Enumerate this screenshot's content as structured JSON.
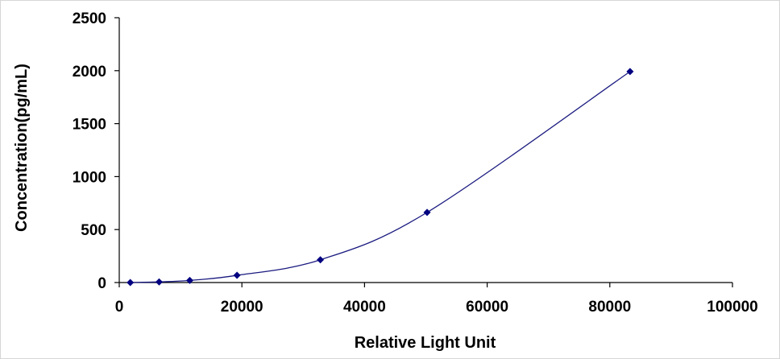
{
  "chart_data": {
    "type": "scatter",
    "title": "",
    "xlabel": "Relative Light Unit",
    "ylabel": "Concentration(pg/mL)",
    "xlim": [
      0,
      100000
    ],
    "ylim": [
      0,
      2500
    ],
    "x_ticks": [
      0,
      20000,
      40000,
      60000,
      80000,
      100000
    ],
    "y_ticks": [
      0,
      500,
      1000,
      1500,
      2000,
      2500
    ],
    "x_tick_labels": [
      "0",
      "20000",
      "40000",
      "60000",
      "80000",
      "100000"
    ],
    "y_tick_labels": [
      "0",
      "500",
      "1000",
      "1500",
      "2000",
      "2500"
    ],
    "grid": false,
    "legend": "none",
    "trendline": "smooth curve",
    "colors": {
      "line": "#1a1a80",
      "marker": "#000080",
      "axis": "#000000"
    },
    "series": [
      {
        "x": [
          1800,
          6500,
          11500,
          19200,
          32800,
          50200,
          83300
        ],
        "y": [
          0,
          6,
          20,
          68,
          215,
          662,
          1992
        ]
      }
    ]
  }
}
